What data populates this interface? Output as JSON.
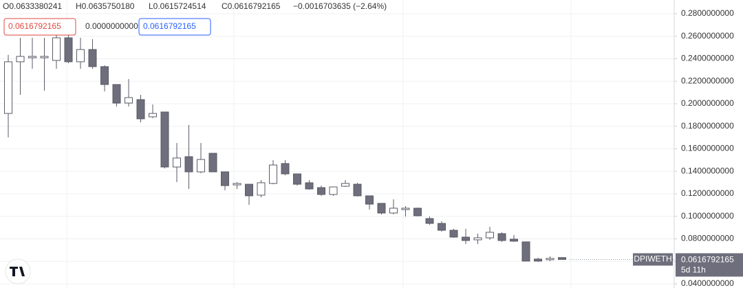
{
  "chart_data": {
    "type": "candlestick",
    "symbol": "DPIWETH",
    "legend_ohlc": [
      "O0.0633380241",
      "H0.0635750180",
      "L0.0615724514",
      "C0.0616792165",
      "−0.0016703635 (−2.64%)"
    ],
    "tool_boxes": [
      "0.0616792165",
      "0.0000000000",
      "0.0616792165"
    ],
    "last_price_label": "0.0616792165",
    "countdown": "5d 11h",
    "up_color": "#ffffff",
    "down_color": "#6e6e7c",
    "wick_color": "#5a5a66",
    "grid": true,
    "ylim": [
      0.0363,
      0.2922
    ],
    "yticks": [
      {
        "value": 0.28,
        "label": "0.2800000000"
      },
      {
        "value": 0.26,
        "label": "0.2600000000"
      },
      {
        "value": 0.24,
        "label": "0.2400000000"
      },
      {
        "value": 0.22,
        "label": "0.2200000000"
      },
      {
        "value": 0.2,
        "label": "0.2000000000"
      },
      {
        "value": 0.18,
        "label": "0.1800000000"
      },
      {
        "value": 0.16,
        "label": "0.1600000000"
      },
      {
        "value": 0.14,
        "label": "0.1400000000"
      },
      {
        "value": 0.12,
        "label": "0.1200000000"
      },
      {
        "value": 0.1,
        "label": "0.1000000000"
      },
      {
        "value": 0.08,
        "label": "0.0800000000"
      },
      {
        "value": 0.06,
        "label": "0.0600000000"
      },
      {
        "value": 0.04,
        "label": "0.0400000000"
      }
    ],
    "open": [
      0.1914,
      0.2373,
      0.2409,
      0.2409,
      0.2385,
      0.2586,
      0.2373,
      0.2482,
      0.233,
      0.2171,
      0.2006,
      0.2037,
      0.1884,
      0.1927,
      0.1438,
      0.153,
      0.1395,
      0.156,
      0.1395,
      0.1279,
      0.1285,
      0.1188,
      0.1292,
      0.1469,
      0.1377,
      0.1298,
      0.1255,
      0.1194,
      0.1267,
      0.1285,
      0.1182,
      0.1115,
      0.1029,
      0.106,
      0.1072,
      0.098,
      0.0937,
      0.0876,
      0.0815,
      0.0791,
      0.0809,
      0.0846,
      0.0797,
      0.0773,
      0.062,
      0.0614,
      0.0633380241
    ],
    "high": [
      0.2434,
      0.2586,
      0.2586,
      0.2586,
      0.2647,
      0.2739,
      0.2586,
      0.2574,
      0.2342,
      0.2171,
      0.222,
      0.2079,
      0.1994,
      0.1927,
      0.1652,
      0.1811,
      0.1652,
      0.156,
      0.1395,
      0.1304,
      0.1285,
      0.1322,
      0.1499,
      0.1499,
      0.1377,
      0.1322,
      0.1273,
      0.1261,
      0.1322,
      0.1298,
      0.1182,
      0.1115,
      0.1151,
      0.109,
      0.1078,
      0.0998,
      0.0956,
      0.0889,
      0.0889,
      0.0846,
      0.0907,
      0.0858,
      0.0834,
      0.0773,
      0.0632,
      0.0644,
      0.063575018
    ],
    "low": [
      0.1701,
      0.2079,
      0.2311,
      0.2116,
      0.2311,
      0.236,
      0.2311,
      0.2311,
      0.211,
      0.1976,
      0.1976,
      0.1835,
      0.1872,
      0.1426,
      0.1304,
      0.1243,
      0.1383,
      0.1395,
      0.1231,
      0.1243,
      0.1102,
      0.1169,
      0.1285,
      0.1365,
      0.1273,
      0.1237,
      0.1182,
      0.1182,
      0.1261,
      0.1176,
      0.106,
      0.1017,
      0.1017,
      0.0998,
      0.0998,
      0.0925,
      0.0864,
      0.0809,
      0.0754,
      0.0754,
      0.0791,
      0.0773,
      0.0773,
      0.0602,
      0.0595,
      0.0602,
      0.0615724514
    ],
    "close": [
      0.2373,
      0.2421,
      0.2421,
      0.2421,
      0.2586,
      0.2373,
      0.2482,
      0.233,
      0.2171,
      0.2006,
      0.2055,
      0.1866,
      0.1914,
      0.1438,
      0.1518,
      0.1395,
      0.1505,
      0.1395,
      0.1273,
      0.1292,
      0.1182,
      0.1298,
      0.1456,
      0.1377,
      0.1285,
      0.1243,
      0.1194,
      0.1261,
      0.1292,
      0.1182,
      0.1108,
      0.1029,
      0.1072,
      0.1072,
      0.1005,
      0.0937,
      0.0876,
      0.0815,
      0.0785,
      0.0809,
      0.0858,
      0.0785,
      0.0779,
      0.0602,
      0.0602,
      0.0626,
      0.0616792165
    ]
  }
}
